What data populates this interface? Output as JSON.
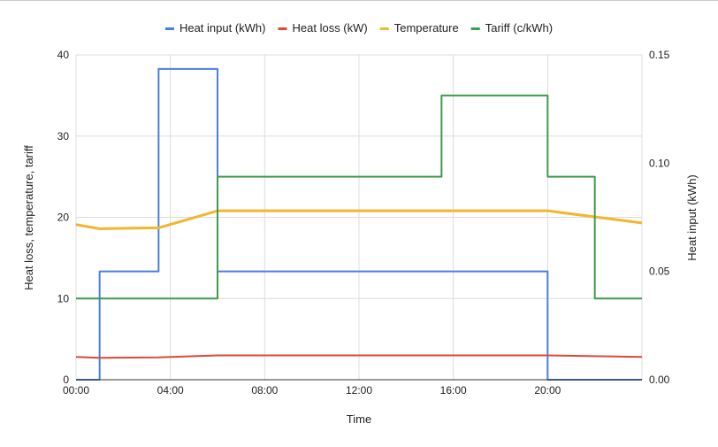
{
  "chart_data": {
    "type": "line",
    "step": true,
    "legend_position": "top",
    "grid": true,
    "xlabel": "Time",
    "ylabel_left": "Heat loss, temperature, tariff",
    "ylabel_right": "Heat input (kWh)",
    "x_ticks": [
      "00:00",
      "04:00",
      "08:00",
      "12:00",
      "16:00",
      "20:00"
    ],
    "y_left_ticks": [
      "0",
      "10",
      "20",
      "30",
      "40"
    ],
    "y_right_ticks": [
      "0.00",
      "0.05",
      "0.10",
      "0.15"
    ],
    "xlim": [
      0,
      24
    ],
    "ylim_left": [
      0,
      40
    ],
    "ylim_right": [
      0,
      0.15
    ],
    "series": [
      {
        "name": "Heat input (kWh)",
        "axis": "right",
        "color": "#4a7fe0",
        "style": "step",
        "x": [
          0,
          1,
          3.5,
          6,
          20,
          24
        ],
        "values": [
          0,
          0.05,
          0.1435,
          0.05,
          0,
          0
        ]
      },
      {
        "name": "Heat loss (kW)",
        "axis": "left",
        "color": "#d94a3a",
        "style": "line",
        "x": [
          0,
          1,
          3.5,
          6,
          12,
          20,
          24
        ],
        "values": [
          2.8,
          2.7,
          2.75,
          3.0,
          3.0,
          3.0,
          2.8
        ]
      },
      {
        "name": "Temperature",
        "axis": "left",
        "color": "#f2b630",
        "style": "line",
        "x": [
          0,
          1,
          3.5,
          6,
          12,
          20,
          24
        ],
        "values": [
          19.1,
          18.6,
          18.7,
          20.8,
          20.8,
          20.8,
          19.3
        ]
      },
      {
        "name": "Tariff (c/kWh)",
        "axis": "left",
        "color": "#3f9c4b",
        "style": "step",
        "x": [
          0,
          6,
          15.5,
          20,
          22,
          24
        ],
        "values": [
          10,
          25,
          35,
          25,
          10,
          10
        ]
      }
    ]
  }
}
